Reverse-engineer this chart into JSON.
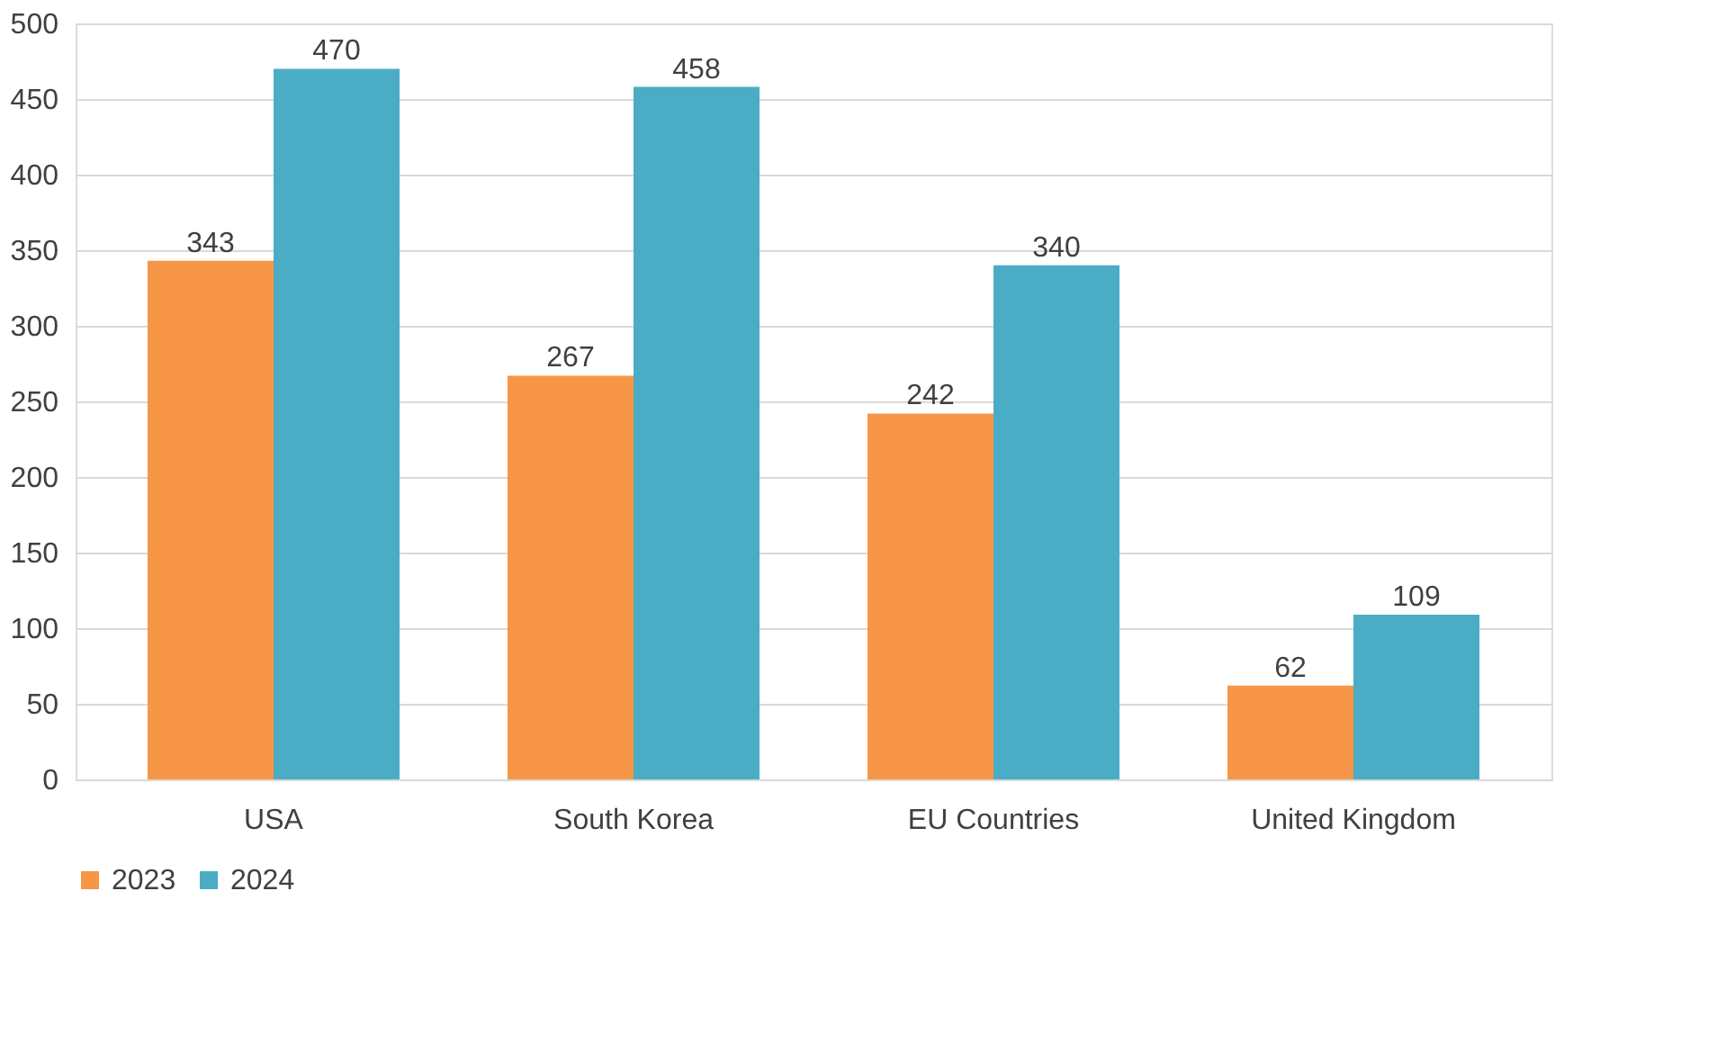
{
  "chart_data": {
    "type": "bar",
    "categories": [
      "USA",
      "South Korea",
      "EU Countries",
      "United Kingdom"
    ],
    "series": [
      {
        "name": "2023",
        "color": "#f79646",
        "values": [
          343,
          267,
          242,
          62
        ]
      },
      {
        "name": "2024",
        "color": "#4bacc6",
        "values": [
          470,
          458,
          340,
          109
        ]
      }
    ],
    "ylim": [
      0,
      500
    ],
    "yticks": [
      0,
      50,
      100,
      150,
      200,
      250,
      300,
      350,
      400,
      450,
      500
    ],
    "grid": "y",
    "legend": "bottom",
    "data_labels": true
  }
}
